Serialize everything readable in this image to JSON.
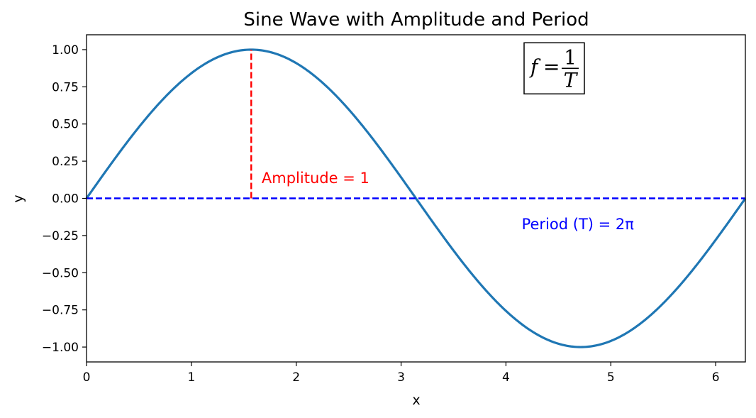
{
  "chart_data": {
    "type": "line",
    "title": "Sine Wave with Amplitude and Period",
    "xlabel": "x",
    "ylabel": "y",
    "xlim": [
      0,
      6.2832
    ],
    "ylim": [
      -1.1,
      1.1
    ],
    "grid": false,
    "xticks": [
      0,
      1,
      2,
      3,
      4,
      5,
      6
    ],
    "xtick_labels": [
      "0",
      "1",
      "2",
      "3",
      "4",
      "5",
      "6"
    ],
    "yticks": [
      1.0,
      0.75,
      0.5,
      0.25,
      0.0,
      -0.25,
      -0.5,
      -0.75,
      -1.0
    ],
    "ytick_labels": [
      "1.00",
      "0.75",
      "0.50",
      "0.25",
      "0.00",
      "−0.25",
      "−0.50",
      "−0.75",
      "−1.00"
    ],
    "series": [
      {
        "function": "sin",
        "color": "#1f77b4",
        "x_range": [
          0,
          6.2832
        ],
        "sample_points": [
          {
            "x": 0.0,
            "y": 0.0
          },
          {
            "x": 1.5708,
            "y": 1.0
          },
          {
            "x": 3.1416,
            "y": 0.0
          },
          {
            "x": 4.7124,
            "y": -1.0
          },
          {
            "x": 6.2832,
            "y": 0.0
          }
        ]
      }
    ],
    "reference_lines": [
      {
        "kind": "horizontal",
        "y": 0.0,
        "x_range": [
          0,
          6.2832
        ],
        "color": "#0000ff",
        "style": "dashed"
      },
      {
        "kind": "vertical",
        "x": 1.5708,
        "y_range": [
          0.0,
          1.0
        ],
        "color": "#ff0000",
        "style": "dashed"
      }
    ],
    "annotations": [
      {
        "text": "Amplitude = 1",
        "x": 1.67,
        "y": 0.14,
        "color": "#ff0000"
      },
      {
        "text": "Period (T) = 2π",
        "x": 4.15,
        "y": -0.17,
        "color": "#0000ff"
      }
    ],
    "formula_box": {
      "lhs": "f",
      "equals": "=",
      "numerator": "1",
      "denominator": "T",
      "x": 4.2,
      "y": 0.65
    }
  }
}
